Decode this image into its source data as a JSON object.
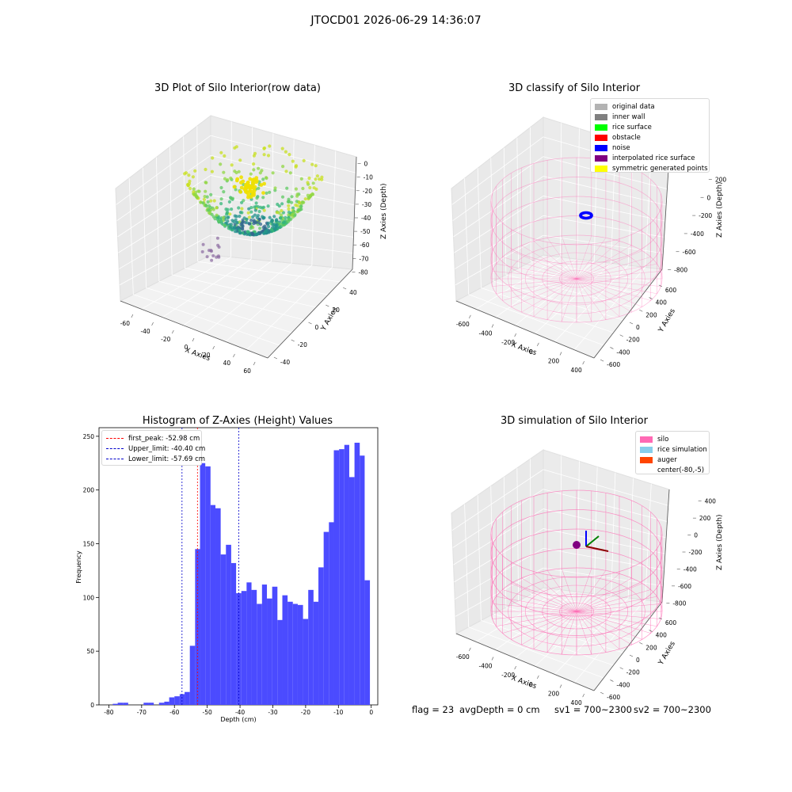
{
  "suptitle": "JTOCD01 2026-06-29 14:36:07",
  "panels": {
    "raw": {
      "title": "3D Plot of Silo Interior(row data)",
      "xlabel": "X Axies",
      "ylabel": "Y Axies",
      "zlabel": "Z Axies (Depth)",
      "xticks": [
        "-60",
        "-40",
        "-20",
        "0",
        "20",
        "40",
        "60"
      ],
      "yticks": [
        "-40",
        "-20",
        "0",
        "20",
        "40"
      ],
      "zticks": [
        "0",
        "-10",
        "-20",
        "-30",
        "-40",
        "-50",
        "-60",
        "-70",
        "-80"
      ]
    },
    "classify": {
      "title": "3D classify of Silo Interior",
      "xlabel": "X Axies",
      "ylabel": "Y Axies",
      "zlabel": "Z Axies (Depth)",
      "xticks": [
        "-600",
        "-400",
        "-200",
        "0",
        "200",
        "400"
      ],
      "yticks": [
        "-600",
        "-400",
        "-200",
        "0",
        "200",
        "400",
        "600"
      ],
      "zticks": [
        "200",
        "0",
        "-200",
        "-400",
        "-600",
        "-800"
      ],
      "legend": [
        {
          "label": "original data",
          "color": "#b3b3b3"
        },
        {
          "label": "inner wall",
          "color": "#808080"
        },
        {
          "label": "rice surface",
          "color": "#00ff00"
        },
        {
          "label": "obstacle",
          "color": "#ff0000"
        },
        {
          "label": "noise",
          "color": "#0000ff"
        },
        {
          "label": "interpolated rice surface",
          "color": "#800080"
        },
        {
          "label": "symmetric generated points",
          "color": "#ffff00"
        }
      ]
    },
    "simulation": {
      "title": "3D simulation of Silo Interior",
      "xlabel": "X Axies",
      "ylabel": "Y Axies",
      "zlabel": "Z Axies (Depth)",
      "xticks": [
        "-600",
        "-400",
        "-200",
        "0",
        "200",
        "400"
      ],
      "yticks": [
        "-600",
        "-400",
        "-200",
        "0",
        "200",
        "400",
        "600"
      ],
      "zticks": [
        "400",
        "200",
        "0",
        "-200",
        "-400",
        "-600",
        "-800"
      ],
      "legend": [
        {
          "label": "silo",
          "color": "#ff69b4"
        },
        {
          "label": "rice simulation",
          "color": "#87ceeb"
        },
        {
          "label": "auger",
          "color": "#ff4500"
        },
        {
          "label": "center(-80,-5)",
          "color": "#ffffff"
        }
      ]
    }
  },
  "status": {
    "flag": "flag = 23",
    "avg_depth": "avgDepth = 0 cm",
    "sv1": "sv1 = 700~2300",
    "sv2": "sv2 = 700~2300"
  },
  "colors": {
    "histogram_bar": "#4b4bff",
    "first_peak_line": "#ff0000",
    "limit_lines": "#0000cc",
    "silo_wire": "#ff69b4"
  },
  "chart_data": {
    "type": "bar",
    "title": "Histogram of Z-Axies (Height) Values",
    "xlabel": "Depth (cm)",
    "ylabel": "Frequency",
    "xlim": [
      -83,
      2
    ],
    "ylim": [
      0,
      258
    ],
    "xticks": [
      -80,
      -70,
      -60,
      -50,
      -40,
      -30,
      -20,
      -10,
      0
    ],
    "yticks": [
      0,
      50,
      100,
      150,
      200,
      250
    ],
    "bin_edges": [
      -78.8,
      -77.3,
      -75.7,
      -74.1,
      -72.6,
      -71.0,
      -69.4,
      -67.8,
      -66.3,
      -64.7,
      -63.1,
      -61.6,
      -60.0,
      -58.4,
      -56.9,
      -55.3,
      -53.7,
      -52.2,
      -50.6,
      -49.0,
      -47.5,
      -45.9,
      -44.3,
      -42.7,
      -41.2,
      -39.6,
      -38.0,
      -36.5,
      -34.9,
      -33.3,
      -31.8,
      -30.2,
      -28.6,
      -27.1,
      -25.5,
      -23.9,
      -22.4,
      -20.8,
      -19.2,
      -17.6,
      -16.1,
      -14.5,
      -12.9,
      -11.4,
      -9.8,
      -8.2,
      -6.7,
      -5.1,
      -3.5,
      -2.0,
      -0.4
    ],
    "values": [
      1,
      2,
      2,
      0,
      0,
      0,
      2,
      2,
      0,
      2,
      3,
      7,
      8,
      10,
      12,
      55,
      145,
      225,
      222,
      186,
      183,
      140,
      149,
      132,
      104,
      106,
      114,
      107,
      94,
      112,
      99,
      110,
      79,
      102,
      96,
      94,
      93,
      80,
      107,
      96,
      128,
      161,
      170,
      237,
      238,
      242,
      212,
      244,
      232,
      116
    ],
    "vlines": [
      {
        "label": "first_peak: -52.98 cm",
        "x": -52.98,
        "color": "#ff0000"
      },
      {
        "label": "Upper_limit: -40.40 cm",
        "x": -40.4,
        "color": "#0000cc"
      },
      {
        "label": "Lower_limit: -57.69 cm",
        "x": -57.69,
        "color": "#0000cc"
      }
    ]
  }
}
